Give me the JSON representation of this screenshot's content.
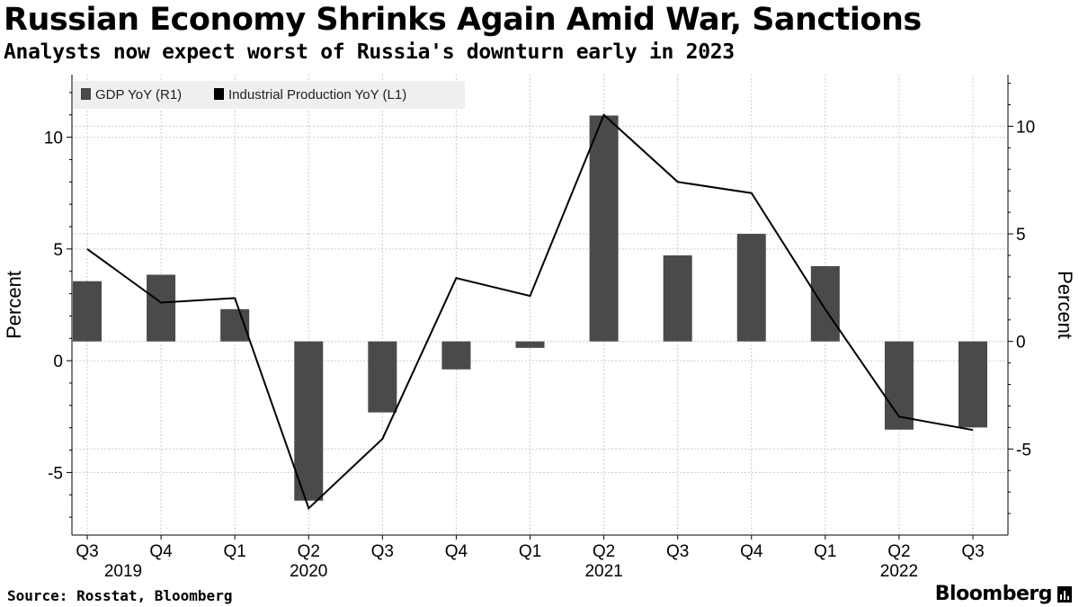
{
  "header": {
    "title": "Russian Economy Shrinks Again Amid War, Sanctions",
    "subtitle": "Analysts now expect worst of Russia's downturn early in 2023"
  },
  "footer": {
    "source": "Source: Rosstat, Bloomberg",
    "brand": "Bloomberg"
  },
  "colors": {
    "bar": "#4a4a4a",
    "line": "#000000",
    "grid": "#cccccc"
  },
  "chart_data": {
    "type": "bar+line",
    "title": "Russian Economy Shrinks Again Amid War, Sanctions",
    "subtitle": "Analysts now expect worst of Russia's downturn early in 2023",
    "categories": [
      "Q3",
      "Q4",
      "Q1",
      "Q2",
      "Q3",
      "Q4",
      "Q1",
      "Q2",
      "Q3",
      "Q4",
      "Q1",
      "Q2",
      "Q3"
    ],
    "year_labels": [
      {
        "label": "2019",
        "index": 0
      },
      {
        "label": "2020",
        "index": 3
      },
      {
        "label": "2021",
        "index": 7
      },
      {
        "label": "2022",
        "index": 11
      }
    ],
    "legend_position": "top-left",
    "series": [
      {
        "name": "GDP YoY (R1)",
        "type": "bar",
        "axis": "right",
        "values": [
          2.8,
          3.1,
          1.5,
          -7.4,
          -3.3,
          -1.3,
          -0.3,
          10.5,
          4.0,
          5.0,
          3.5,
          -4.1,
          -4.0
        ]
      },
      {
        "name": "Industrial Production YoY (L1)",
        "type": "line",
        "axis": "left",
        "values": [
          5.0,
          2.6,
          2.8,
          -6.6,
          -3.5,
          3.7,
          2.9,
          11.0,
          8.0,
          7.5,
          2.3,
          -2.5,
          -3.1
        ]
      }
    ],
    "left_axis": {
      "label": "Percent",
      "ticks": [
        -5,
        0,
        5,
        10
      ],
      "range": [
        -7.8,
        12.8
      ]
    },
    "right_axis": {
      "label": "Percent",
      "ticks": [
        -5,
        0,
        5,
        10
      ],
      "range": [
        -9.0,
        12.4
      ]
    },
    "grid": true
  }
}
